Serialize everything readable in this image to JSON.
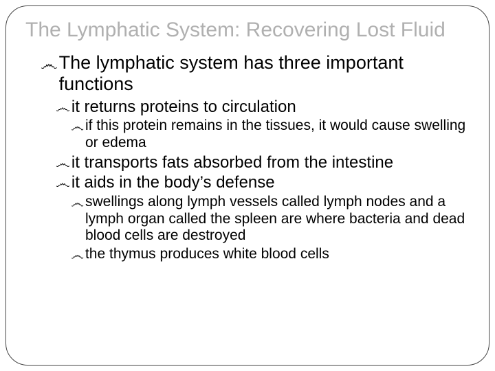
{
  "title": "The Lymphatic System: Recovering Lost Fluid",
  "bullet_glyph": "෴",
  "colors": {
    "title": "#b0b0b0",
    "text": "#000000",
    "frame_border": "#444444",
    "background": "#ffffff"
  },
  "fontsizes": {
    "title": 30,
    "level1": 27,
    "level2": 24,
    "level3": 21
  },
  "items": {
    "l1_1": "The lymphatic system has three important functions",
    "l2_1": "it returns proteins to circulation",
    "l3_1": "if this protein remains in the tissues, it would cause swelling or edema",
    "l2_2": "it transports fats absorbed from the intestine",
    "l2_3": "it aids in the body’s defense",
    "l3_2": "swellings along lymph vessels called lymph nodes and a lymph organ called the spleen are where bacteria and dead blood cells are destroyed",
    "l3_3": "the thymus produces white blood cells"
  }
}
